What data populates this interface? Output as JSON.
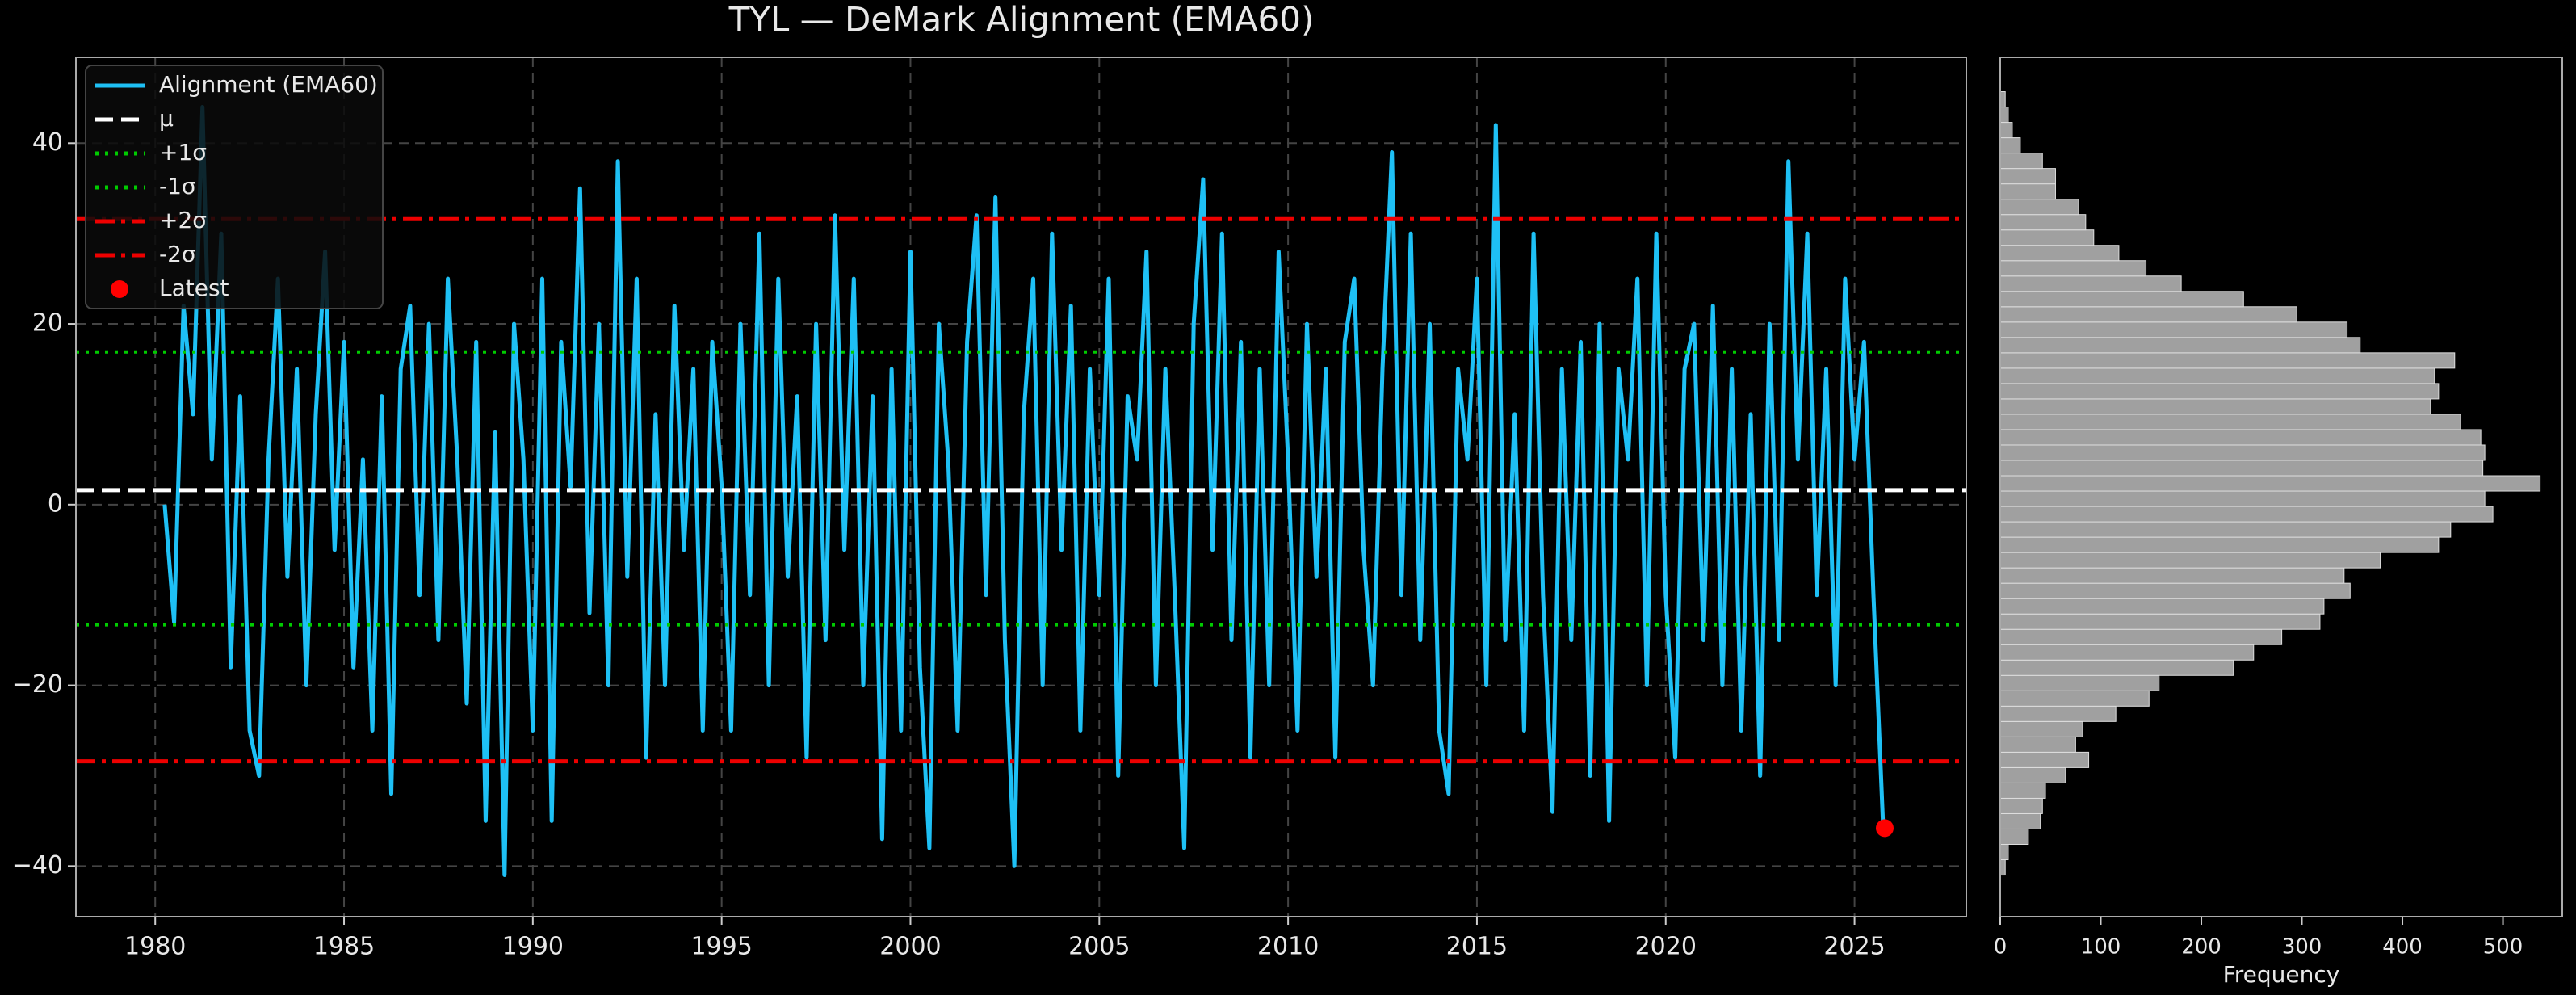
{
  "chart_data": [
    {
      "type": "line",
      "title": "TYL — DeMark Alignment (EMA60)",
      "grid": true,
      "legend": "upper left",
      "xlim": [
        1977.9,
        2027.96
      ],
      "ylim": [
        -45.6,
        49.5
      ],
      "xticks": [
        1980,
        1985,
        1990,
        1995,
        2000,
        2005,
        2010,
        2015,
        2020,
        2025
      ],
      "yticks": [
        {
          "value": -40,
          "label": "−40"
        },
        {
          "value": -20,
          "label": "−20"
        },
        0,
        20,
        40
      ],
      "x": [
        1980.25,
        1980.5,
        1980.75,
        1981,
        1981.25,
        1981.5,
        1981.75,
        1982,
        1982.25,
        1982.5,
        1982.75,
        1983,
        1983.25,
        1983.5,
        1983.75,
        1984,
        1984.25,
        1984.5,
        1984.75,
        1985,
        1985.25,
        1985.5,
        1985.75,
        1986,
        1986.25,
        1986.5,
        1986.75,
        1987,
        1987.25,
        1987.5,
        1987.75,
        1988,
        1988.25,
        1988.5,
        1988.75,
        1989,
        1989.25,
        1989.5,
        1989.75,
        1990,
        1990.25,
        1990.5,
        1990.75,
        1991,
        1991.25,
        1991.5,
        1991.75,
        1992,
        1992.25,
        1992.5,
        1992.75,
        1993,
        1993.25,
        1993.5,
        1993.75,
        1994,
        1994.25,
        1994.5,
        1994.75,
        1995,
        1995.25,
        1995.5,
        1995.75,
        1996,
        1996.25,
        1996.5,
        1996.75,
        1997,
        1997.25,
        1997.5,
        1997.75,
        1998,
        1998.25,
        1998.5,
        1998.75,
        1999,
        1999.25,
        1999.5,
        1999.75,
        2000,
        2000.25,
        2000.5,
        2000.75,
        2001,
        2001.25,
        2001.5,
        2001.75,
        2002,
        2002.25,
        2002.5,
        2002.75,
        2003,
        2003.25,
        2003.5,
        2003.75,
        2004,
        2004.25,
        2004.5,
        2004.75,
        2005,
        2005.25,
        2005.5,
        2005.75,
        2006,
        2006.25,
        2006.5,
        2006.75,
        2007,
        2007.25,
        2007.5,
        2007.75,
        2008,
        2008.25,
        2008.5,
        2008.75,
        2009,
        2009.25,
        2009.5,
        2009.75,
        2010,
        2010.25,
        2010.5,
        2010.75,
        2011,
        2011.25,
        2011.5,
        2011.75,
        2012,
        2012.25,
        2012.5,
        2012.75,
        2013,
        2013.25,
        2013.5,
        2013.75,
        2014,
        2014.25,
        2014.5,
        2014.75,
        2015,
        2015.25,
        2015.5,
        2015.75,
        2016,
        2016.25,
        2016.5,
        2016.75,
        2017,
        2017.25,
        2017.5,
        2017.75,
        2018,
        2018.25,
        2018.5,
        2018.75,
        2019,
        2019.25,
        2019.5,
        2019.75,
        2020,
        2020.25,
        2020.5,
        2020.75,
        2021,
        2021.25,
        2021.5,
        2021.75,
        2022,
        2022.25,
        2022.5,
        2022.75,
        2023,
        2023.25,
        2023.5,
        2023.75,
        2024,
        2024.25,
        2024.5,
        2024.75,
        2025,
        2025.25,
        2025.5,
        2025.75
      ],
      "series": [
        {
          "name": "Alignment (EMA60)",
          "color": "#1ec0f5",
          "values": [
            0,
            -13,
            22,
            10,
            44,
            5,
            30,
            -18,
            12,
            -25,
            -30,
            5,
            25,
            -8,
            15,
            -20,
            10,
            28,
            -5,
            18,
            -18,
            5,
            -25,
            12,
            -32,
            15,
            22,
            -10,
            20,
            -15,
            25,
            5,
            -22,
            18,
            -35,
            8,
            -41,
            20,
            5,
            -25,
            25,
            -35,
            18,
            2,
            35,
            -12,
            20,
            -20,
            38,
            -8,
            25,
            -28,
            10,
            -20,
            22,
            -5,
            15,
            -25,
            18,
            2,
            -25,
            20,
            -10,
            30,
            -20,
            25,
            -8,
            12,
            -28,
            20,
            -15,
            32,
            -5,
            25,
            -20,
            12,
            -37,
            15,
            -25,
            28,
            -18,
            -38,
            20,
            5,
            -25,
            18,
            32,
            -10,
            34,
            -15,
            -40,
            10,
            25,
            -20,
            30,
            -5,
            22,
            -25,
            15,
            -10,
            25,
            -30,
            12,
            5,
            28,
            -20,
            15,
            -10,
            -38,
            20,
            36,
            -5,
            30,
            -15,
            18,
            -28,
            15,
            -20,
            28,
            5,
            -25,
            20,
            -8,
            15,
            -28,
            18,
            25,
            -5,
            -20,
            15,
            39,
            -10,
            30,
            -15,
            20,
            -25,
            -32,
            15,
            5,
            25,
            -20,
            42,
            -15,
            10,
            -25,
            30,
            -10,
            -34,
            15,
            -15,
            18,
            -30,
            20,
            -35,
            15,
            5,
            25,
            -20,
            30,
            -10,
            -28,
            15,
            20,
            -15,
            22,
            -20,
            15,
            -25,
            10,
            -30,
            20,
            -15,
            38,
            5,
            30,
            -10,
            15,
            -20,
            25,
            5,
            18,
            -10,
            -35
          ]
        }
      ],
      "lines": [
        {
          "name": "μ",
          "value": 1.6,
          "color": "#ffffff",
          "style": "dashed"
        },
        {
          "name": "+1σ",
          "value": 16.9,
          "color": "#00cc00",
          "style": "dotted"
        },
        {
          "name": "-1σ",
          "value": -13.3,
          "color": "#00cc00",
          "style": "dotted"
        },
        {
          "name": "+2σ",
          "value": 31.6,
          "color": "#ee0000",
          "style": "dashdot"
        },
        {
          "name": "-2σ",
          "value": -28.4,
          "color": "#ee0000",
          "style": "dashdot"
        }
      ],
      "latest": {
        "name": "Latest",
        "x": 2025.8,
        "y": -35.8,
        "color": "#ff0000"
      }
    },
    {
      "type": "histogram",
      "orientation": "horizontal",
      "xlabel": "Frequency",
      "color": "#a0a0a0",
      "xlim": [
        0,
        559
      ],
      "ylim": [
        -45.6,
        49.5
      ],
      "xticks": [
        0,
        100,
        200,
        300,
        400,
        500
      ],
      "bins": [
        -41,
        -39.3,
        -37.6,
        -35.9,
        -34.2,
        -32.5,
        -30.8,
        -29.1,
        -27.4,
        -25.7,
        -24,
        -22.3,
        -20.6,
        -18.9,
        -17.2,
        -15.5,
        -13.8,
        -12.1,
        -10.4,
        -8.7,
        -7,
        -5.3,
        -3.6,
        -1.9,
        -0.2,
        1.5,
        3.2,
        4.9,
        6.6,
        8.3,
        10,
        11.7,
        13.4,
        15.1,
        16.8,
        18.5,
        20.2,
        21.9,
        23.6,
        25.3,
        27,
        28.7,
        30.4,
        32.1,
        33.8,
        35.5,
        37.2,
        38.9,
        40.6,
        42.3,
        44,
        45.7
      ],
      "values": [
        5,
        8,
        28,
        40,
        42,
        45,
        65,
        88,
        75,
        82,
        115,
        148,
        158,
        232,
        252,
        280,
        318,
        322,
        348,
        342,
        378,
        436,
        448,
        490,
        482,
        537,
        480,
        482,
        478,
        458,
        428,
        436,
        432,
        452,
        358,
        345,
        295,
        242,
        180,
        145,
        118,
        93,
        85,
        78,
        55,
        55,
        42,
        20,
        12,
        8,
        5
      ]
    }
  ]
}
